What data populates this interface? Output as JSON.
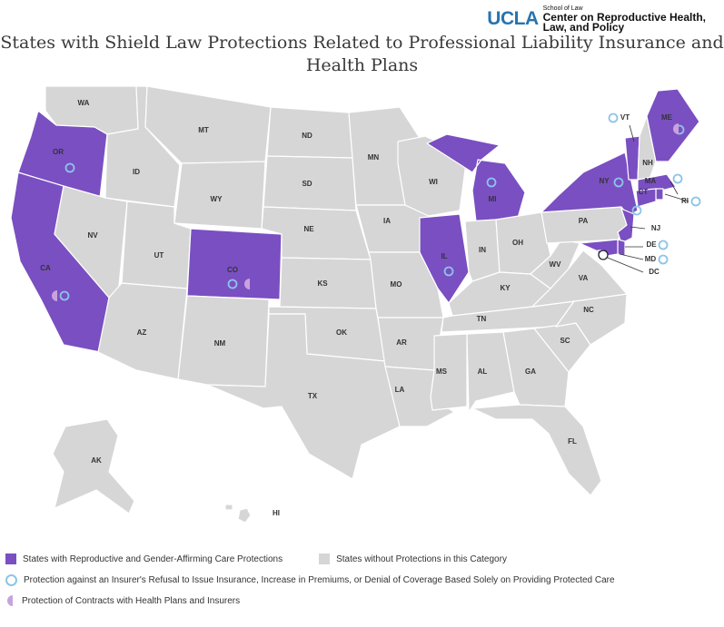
{
  "header": {
    "logo_ucla": "UCLA",
    "logo_school": "School of Law",
    "logo_center_line1": "Center on Reproductive Health,",
    "logo_center_line2": "Law, and Policy"
  },
  "title_line1": "States with Shield Law Protections Related to Professional Liability Insurance and",
  "title_line2": "Health Plans",
  "colors": {
    "protected": "#7a4fc2",
    "unprotected": "#d6d6d6",
    "border": "#ffffff",
    "ring": "#8cc4e8",
    "contracts": "#c9a2dd"
  },
  "states": {
    "WA": "WA",
    "OR": "OR",
    "CA": "CA",
    "ID": "ID",
    "NV": "NV",
    "MT": "MT",
    "WY": "WY",
    "UT": "UT",
    "CO": "CO",
    "AZ": "AZ",
    "NM": "NM",
    "ND": "ND",
    "SD": "SD",
    "NE": "NE",
    "KS": "KS",
    "OK": "OK",
    "TX": "TX",
    "MN": "MN",
    "IA": "IA",
    "MO": "MO",
    "AR": "AR",
    "LA": "LA",
    "WI": "WI",
    "IL": "IL",
    "MI": "MI",
    "IN": "IN",
    "OH": "OH",
    "KY": "KY",
    "TN": "TN",
    "MS": "MS",
    "AL": "AL",
    "GA": "GA",
    "FL": "FL",
    "SC": "SC",
    "NC": "NC",
    "VA": "VA",
    "WV": "WV",
    "PA": "PA",
    "NY": "NY",
    "VT": "VT",
    "NH": "NH",
    "ME": "ME",
    "MA": "MA",
    "RI": "RI",
    "CT": "CT",
    "NJ": "NJ",
    "DE": "DE",
    "MD": "MD",
    "DC": "DC",
    "AK": "AK",
    "HI": "HI"
  },
  "protected_states": [
    "OR",
    "CA",
    "CO",
    "IL",
    "MI",
    "NY",
    "VT",
    "ME",
    "MA",
    "RI",
    "CT",
    "NJ",
    "DE",
    "MD",
    "DC"
  ],
  "insurer_refusal_protection": [
    "OR",
    "CA",
    "CO",
    "IL",
    "MI",
    "NY",
    "VT",
    "ME",
    "MA",
    "RI",
    "CT",
    "NJ",
    "DE",
    "MD"
  ],
  "contracts_protection": [
    "CA",
    "CO",
    "ME"
  ],
  "legend": {
    "protected_label": "States with Reproductive and Gender-Affirming Care Protections",
    "unprotected_label": "States without Protections in this Category",
    "ring_label": "Protection against an Insurer's Refusal to Issue Insurance, Increase in Premiums, or Denial of Coverage Based Solely on Providing Protected Care",
    "half_label": "Protection of Contracts with Health Plans and Insurers"
  }
}
